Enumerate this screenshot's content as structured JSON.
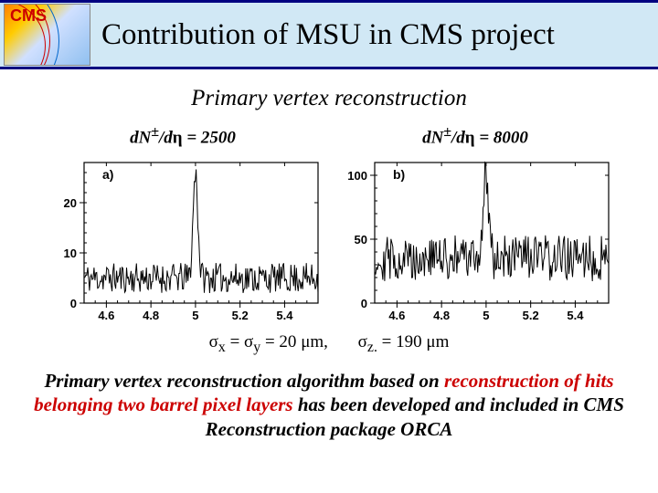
{
  "header": {
    "logo_label": "CMS",
    "title": "Contribution of MSU in CMS project",
    "bg_color": "#d1e8f5",
    "border_color": "#000080"
  },
  "subtitle": "Primary vertex reconstruction",
  "eq_left": {
    "lhs_d": "d",
    "lhs_N": "N",
    "lhs_pm": "±",
    "lhs_slash_d": "/d",
    "lhs_eta": "η",
    "eq": " = ",
    "val": "2500"
  },
  "eq_right": {
    "lhs_d": "d",
    "lhs_N": "N",
    "lhs_pm": "±",
    "lhs_slash_d": "/d",
    "lhs_eta": "η",
    "eq": " = ",
    "val": "8000"
  },
  "chart_a": {
    "panel": "a)",
    "x_ticks": [
      4.6,
      4.8,
      5,
      5.2,
      5.4
    ],
    "x_tick_labels": [
      "4.6",
      "4.8",
      "5",
      "5.2",
      "5.4"
    ],
    "y_ticks": [
      0,
      10,
      20
    ],
    "y_tick_labels": [
      "0",
      "10",
      "20"
    ],
    "xlim": [
      4.5,
      5.55
    ],
    "ylim": [
      0,
      28
    ],
    "baseline_noise_mean": 5,
    "baseline_noise_amp": 3,
    "peak_x": 5.0,
    "peak_height": 26,
    "peak_width": 0.015,
    "line_color": "#000000",
    "n_points": 260
  },
  "chart_b": {
    "panel": "b)",
    "x_ticks": [
      4.6,
      4.8,
      5,
      5.2,
      5.4
    ],
    "x_tick_labels": [
      "4.6",
      "4.8",
      "5",
      "5.2",
      "5.4"
    ],
    "y_ticks": [
      0,
      50,
      100
    ],
    "y_tick_labels": [
      "0",
      "50",
      "100"
    ],
    "xlim": [
      4.5,
      5.55
    ],
    "ylim": [
      0,
      110
    ],
    "baseline_noise_mean": 35,
    "baseline_noise_amp": 18,
    "peak_x": 5.0,
    "peak_height": 100,
    "peak_width": 0.018,
    "line_color": "#000000",
    "n_points": 260
  },
  "sigma_xy": {
    "sigma": "σ",
    "sub_x": "x",
    "eq1": " = ",
    "sub_y": "y",
    "eq2": " = 20 ",
    "unit_mu": "μ",
    "unit_m": "m",
    "comma": ","
  },
  "sigma_z": {
    "sigma": "σ",
    "sub_z": "z",
    "dot": ".",
    "eq": " = 190 ",
    "unit_mu": "μ",
    "unit_m": "m"
  },
  "footer": {
    "t1": "Primary vertex reconstruction algorithm based on ",
    "h1": "reconstruction of hits belonging two barrel pixel layers ",
    "t2": "has been developed and included in CMS Reconstruction package ORCA"
  }
}
